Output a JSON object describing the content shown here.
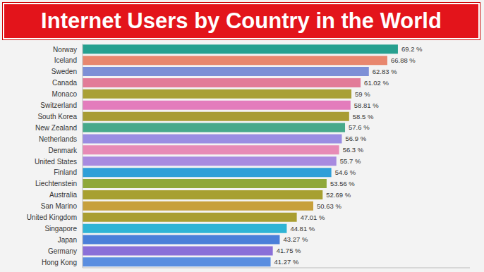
{
  "chart_data": {
    "type": "bar",
    "title": "Internet Users by Country in the World",
    "orientation": "horizontal",
    "categories": [
      "Norway",
      "Iceland",
      "Sweden",
      "Canada",
      "Monaco",
      "Switzerland",
      "South Korea",
      "New Zealand",
      "Netherlands",
      "Denmark",
      "United States",
      "Finland",
      "Liechtenstein",
      "Australia",
      "San Marino",
      "United Kingdom",
      "Singapore",
      "Japan",
      "Germany",
      "Hong Kong"
    ],
    "values": [
      69.2,
      66.88,
      62.83,
      61.02,
      59,
      58.81,
      58.5,
      57.6,
      56.9,
      56.3,
      55.7,
      54.6,
      53.56,
      52.69,
      50.63,
      47.01,
      44.81,
      43.27,
      41.75,
      41.27
    ],
    "value_labels": [
      "69.2 %",
      "66.88 %",
      "62.83 %",
      "61.02 %",
      "59 %",
      "58.81 %",
      "58.5 %",
      "57.6 %",
      "56.9 %",
      "56.3 %",
      "55.7 %",
      "54.6 %",
      "53.56 %",
      "52.69 %",
      "50.63 %",
      "47.01 %",
      "44.81 %",
      "43.27 %",
      "41.75 %",
      "41.27 %"
    ],
    "colors": [
      "#26a08f",
      "#e8876e",
      "#7d8fd6",
      "#e27b98",
      "#a9a036",
      "#e37cbc",
      "#a89c34",
      "#47a98b",
      "#9a8de2",
      "#e78ab6",
      "#a88ae0",
      "#2f9fd8",
      "#8fa83a",
      "#a7a031",
      "#c7a03c",
      "#a99e31",
      "#2fb4d5",
      "#4a7fd9",
      "#8a6fd8",
      "#5a8ee0"
    ],
    "xlim": [
      0,
      85
    ],
    "data_labels": true,
    "tick_labels": "y",
    "grid": false
  }
}
